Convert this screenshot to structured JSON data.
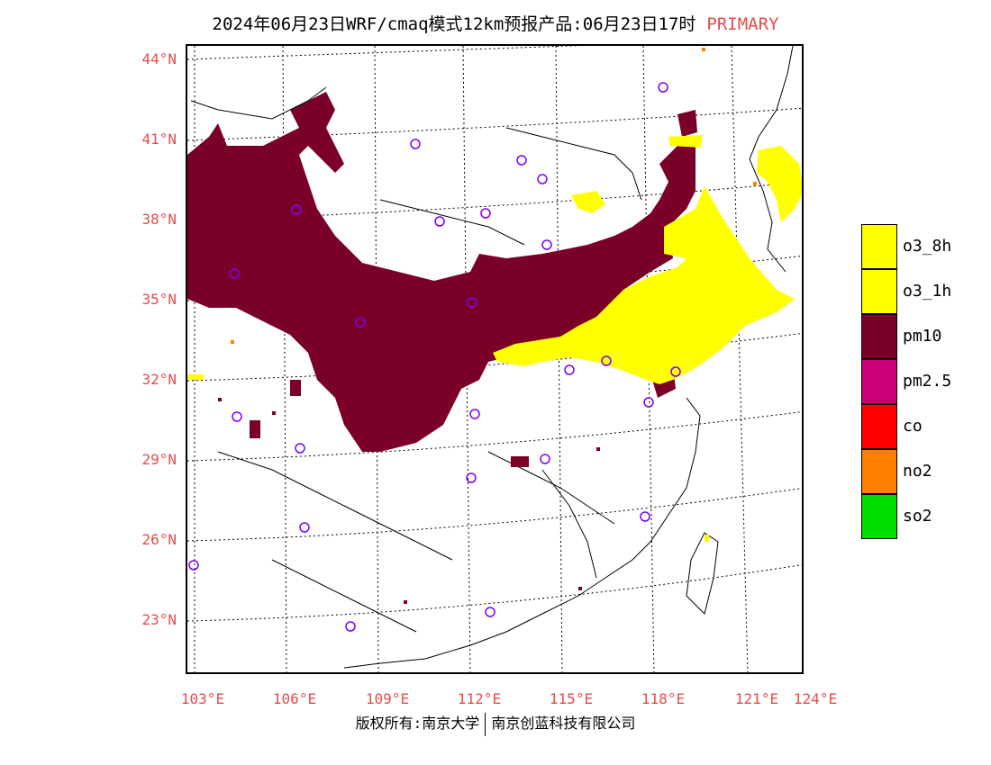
{
  "header": {
    "title": "2024年06月23日WRF/cmaq模式12km预报产品:06月23日17时",
    "label": "PRIMARY"
  },
  "axes": {
    "lat_labels": [
      "44°N",
      "41°N",
      "38°N",
      "35°N",
      "32°N",
      "29°N",
      "26°N",
      "23°N"
    ],
    "lon_labels": [
      "103°E",
      "106°E",
      "109°E",
      "112°E",
      "115°E",
      "118°E",
      "121°E",
      "124°E"
    ]
  },
  "legend": [
    {
      "label": "o3_8h",
      "color": "#ffff00"
    },
    {
      "label": "o3_1h",
      "color": "#ffff00"
    },
    {
      "label": "pm10",
      "color": "#7b0027"
    },
    {
      "label": "pm2.5",
      "color": "#cc0077"
    },
    {
      "label": "co",
      "color": "#ff0000"
    },
    {
      "label": "no2",
      "color": "#ff7f00"
    },
    {
      "label": "so2",
      "color": "#00dd00"
    }
  ],
  "footer": {
    "left": "版权所有:南京大学",
    "right": "南京创蓝科技有限公司"
  }
}
